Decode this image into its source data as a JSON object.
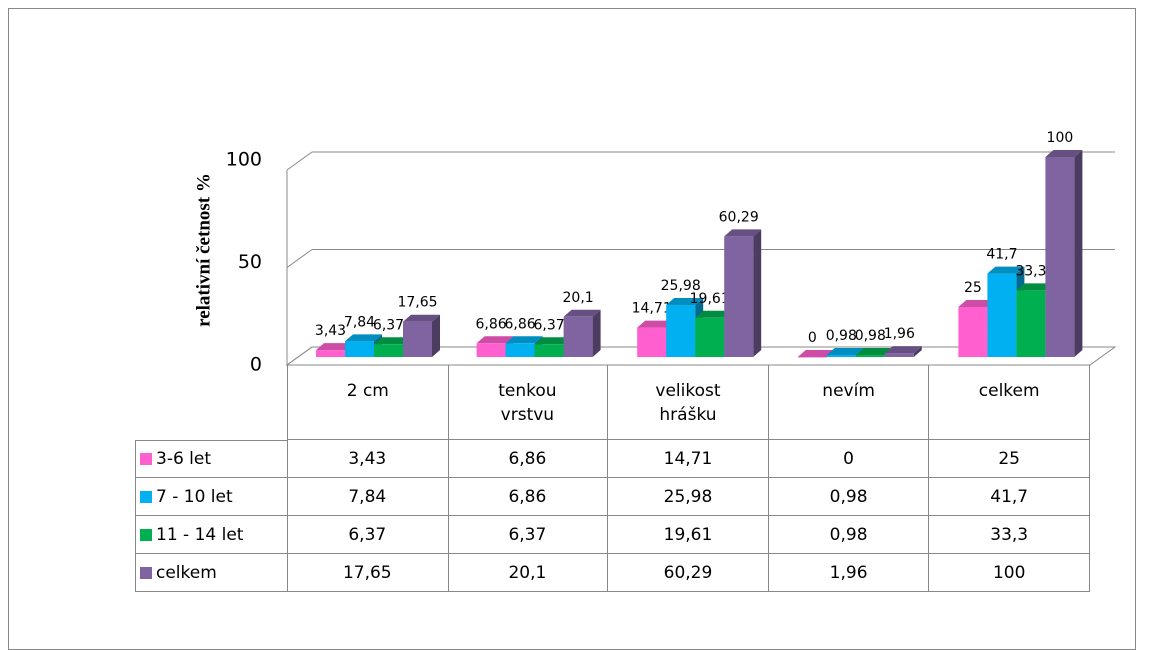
{
  "chart_data": {
    "type": "bar3d",
    "y_axis_label": "relativní četnost %",
    "categories": [
      "2 cm",
      "tenkou vrstvu",
      "velikost hrášku",
      "nevím",
      "celkem"
    ],
    "series": [
      {
        "name": "3-6 let",
        "color": "#ff5fcf",
        "values": [
          3.43,
          6.86,
          14.71,
          0,
          25
        ],
        "value_labels": [
          "3,43",
          "6,86",
          "14,71",
          "0",
          "25"
        ]
      },
      {
        "name": "7 - 10 let",
        "color": "#00b0f0",
        "values": [
          7.84,
          6.86,
          25.98,
          0.98,
          41.7
        ],
        "value_labels": [
          "7,84",
          "6,86",
          "25,98",
          "0,98",
          "41,7"
        ]
      },
      {
        "name": "11 - 14 let",
        "color": "#00b050",
        "values": [
          6.37,
          6.37,
          19.61,
          0.98,
          33.3
        ],
        "value_labels": [
          "6,37",
          "6,37",
          "19,61",
          "0,98",
          "33,3"
        ]
      },
      {
        "name": "celkem",
        "color": "#8064a2",
        "values": [
          17.65,
          20.1,
          60.29,
          1.96,
          100
        ],
        "value_labels": [
          "17,65",
          "20,1",
          "60,29",
          "1,96",
          "100"
        ]
      }
    ],
    "ylim": [
      0,
      100
    ],
    "yticks": [
      0,
      50,
      100
    ],
    "grid": true,
    "data_table": true
  }
}
